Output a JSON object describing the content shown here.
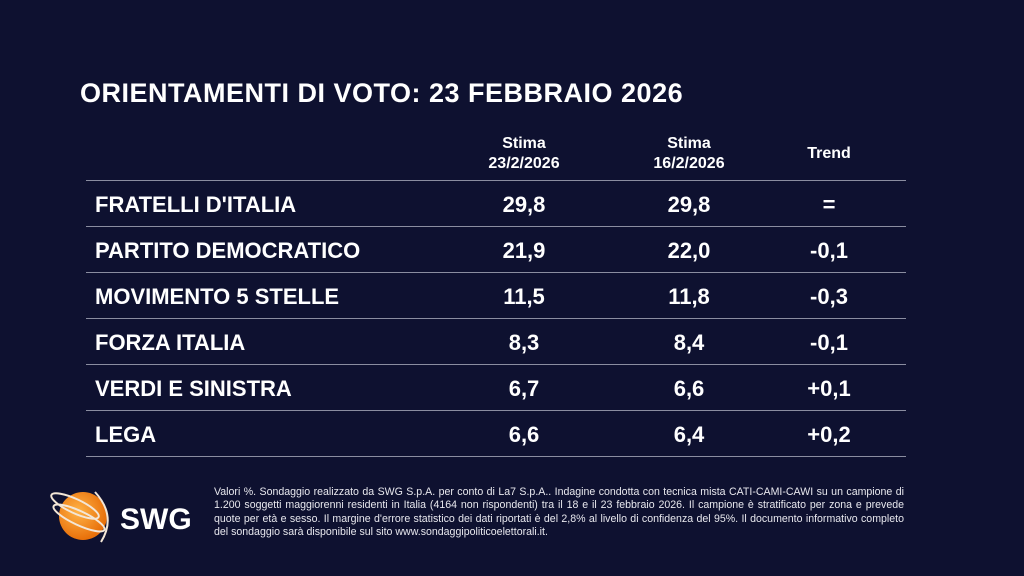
{
  "title": "ORIENTAMENTI DI VOTO: 23 FEBBRAIO 2026",
  "headers": [
    {
      "line1": "Stima",
      "line2": "23/2/2026"
    },
    {
      "line1": "Stima",
      "line2": "16/2/2026"
    },
    {
      "line1": "Trend",
      "line2": ""
    }
  ],
  "rows": [
    {
      "party": "FRATELLI D'ITALIA",
      "current": "29,8",
      "previous": "29,8",
      "trend": "="
    },
    {
      "party": "PARTITO DEMOCRATICO",
      "current": "21,9",
      "previous": "22,0",
      "trend": "-0,1"
    },
    {
      "party": "MOVIMENTO 5 STELLE",
      "current": "11,5",
      "previous": "11,8",
      "trend": "-0,3"
    },
    {
      "party": "FORZA ITALIA",
      "current": "8,3",
      "previous": "8,4",
      "trend": "-0,1"
    },
    {
      "party": "VERDI E SINISTRA",
      "current": "6,7",
      "previous": "6,6",
      "trend": "+0,1"
    },
    {
      "party": "LEGA",
      "current": "6,6",
      "previous": "6,4",
      "trend": "+0,2"
    }
  ],
  "footnote": "Valori %. Sondaggio realizzato da SWG S.p.A. per conto di La7 S.p.A.. Indagine condotta con tecnica mista CATI-CAMI-CAWI su un campione di 1.200 soggetti maggiorenni residenti in Italia (4164 non rispondenti) tra il 18 e il 23 febbraio 2026. Il campione è stratificato per zona e prevede quote per età e sesso. Il margine d'errore statistico dei dati riportati è del 2,8% al livello di confidenza del 95%. Il documento informativo completo del sondaggio sarà disponibile sul sito www.sondaggipoliticoelettorali.it.",
  "logo": {
    "text": "SWG",
    "color": "#f39a1e"
  },
  "colors": {
    "background": "#0e1130",
    "divider": "#8a8da0"
  }
}
